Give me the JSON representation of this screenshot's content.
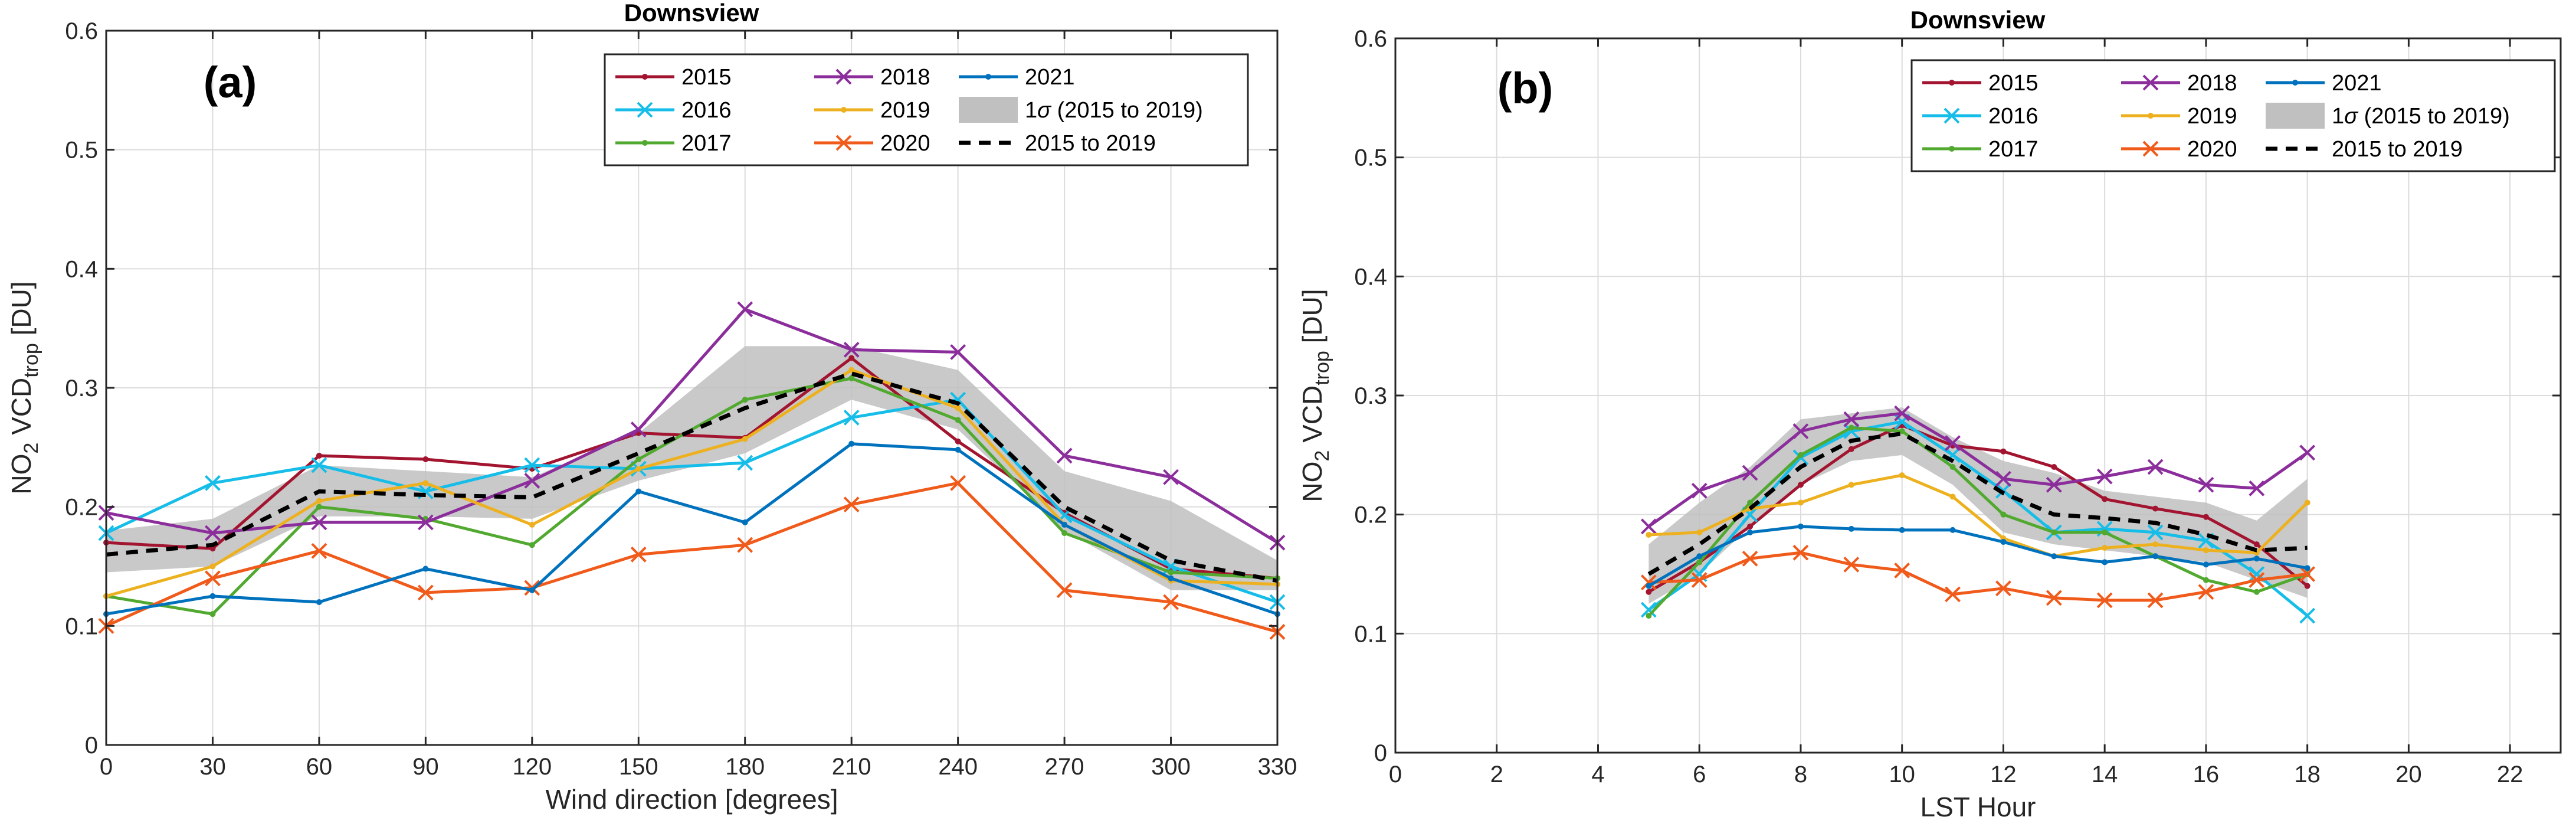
{
  "chart_data": [
    {
      "type": "line",
      "panel_label": "(a)",
      "title": "Downsview",
      "xlabel": "Wind direction [degrees]",
      "ylabel": {
        "base": "NO",
        "sub1": "2",
        "mid": " VCD",
        "sub2": "trop",
        "unit": " [DU]"
      },
      "xlim": [
        0,
        330
      ],
      "ylim": [
        0,
        0.6
      ],
      "xticks": [
        0,
        30,
        60,
        90,
        120,
        150,
        180,
        210,
        240,
        270,
        300,
        330
      ],
      "xtick_labels": [
        "0",
        "30",
        "60",
        "90",
        "120",
        "150",
        "180",
        "210",
        "240",
        "270",
        "300",
        "330"
      ],
      "yticks": [
        0,
        0.1,
        0.2,
        0.3,
        0.4,
        0.5,
        0.6
      ],
      "ytick_labels": [
        "0",
        "0.1",
        "0.2",
        "0.3",
        "0.4",
        "0.5",
        "0.6"
      ],
      "grid": true,
      "legend_position": "top-right",
      "x": [
        0,
        30,
        60,
        90,
        120,
        150,
        180,
        210,
        240,
        270,
        300,
        330
      ],
      "band": {
        "name": "1σ (2015 to 2019)",
        "sigma_symbol": "σ",
        "label_rest": " (2015 to 2019)",
        "color": "#c0c0c0",
        "lower": [
          0.145,
          0.15,
          0.192,
          0.192,
          0.19,
          0.222,
          0.245,
          0.29,
          0.265,
          0.18,
          0.13,
          0.13
        ],
        "upper": [
          0.18,
          0.19,
          0.235,
          0.23,
          0.225,
          0.262,
          0.335,
          0.335,
          0.315,
          0.23,
          0.205,
          0.155
        ]
      },
      "series": [
        {
          "name": "2015",
          "color": "#a2142f",
          "marker": "dot",
          "dashed": false,
          "values": [
            0.17,
            0.165,
            0.243,
            0.24,
            0.232,
            0.262,
            0.258,
            0.325,
            0.255,
            0.195,
            0.148,
            0.14
          ]
        },
        {
          "name": "2016",
          "color": "#16bde8",
          "marker": "x",
          "dashed": false,
          "values": [
            0.178,
            0.22,
            0.235,
            0.213,
            0.235,
            0.232,
            0.237,
            0.275,
            0.29,
            0.193,
            0.15,
            0.12
          ]
        },
        {
          "name": "2017",
          "color": "#52a930",
          "marker": "dot",
          "dashed": false,
          "values": [
            0.125,
            0.11,
            0.2,
            0.19,
            0.168,
            0.24,
            0.29,
            0.308,
            0.273,
            0.178,
            0.145,
            0.14
          ]
        },
        {
          "name": "2018",
          "color": "#8b2e9b",
          "marker": "x",
          "dashed": false,
          "values": [
            0.195,
            0.178,
            0.187,
            0.187,
            0.222,
            0.265,
            0.366,
            0.332,
            0.33,
            0.243,
            0.225,
            0.17
          ]
        },
        {
          "name": "2019",
          "color": "#edb120",
          "marker": "dot",
          "dashed": false,
          "values": [
            0.125,
            0.15,
            0.205,
            0.22,
            0.185,
            0.232,
            0.257,
            0.315,
            0.283,
            0.185,
            0.138,
            0.135
          ]
        },
        {
          "name": "2020",
          "color": "#f05a1a",
          "marker": "x",
          "dashed": false,
          "values": [
            0.1,
            0.14,
            0.163,
            0.128,
            0.132,
            0.16,
            0.168,
            0.202,
            0.22,
            0.13,
            0.12,
            0.095
          ]
        },
        {
          "name": "2021",
          "color": "#0072bd",
          "marker": "dot",
          "dashed": false,
          "values": [
            0.11,
            0.125,
            0.12,
            0.148,
            0.13,
            0.213,
            0.187,
            0.253,
            0.248,
            0.185,
            0.14,
            0.11
          ]
        },
        {
          "name": "2015 to 2019",
          "color": "#000000",
          "marker": "none",
          "dashed": true,
          "values": [
            0.16,
            0.168,
            0.213,
            0.21,
            0.208,
            0.245,
            0.283,
            0.312,
            0.287,
            0.2,
            0.155,
            0.138
          ]
        }
      ]
    },
    {
      "type": "line",
      "panel_label": "(b)",
      "title": "Downsview",
      "xlabel": "LST Hour",
      "ylabel": {
        "base": "NO",
        "sub1": "2",
        "mid": " VCD",
        "sub2": "trop",
        "unit": " [DU]"
      },
      "xlim": [
        0,
        23
      ],
      "ylim": [
        0,
        0.6
      ],
      "xticks": [
        0,
        2,
        4,
        6,
        8,
        10,
        12,
        14,
        16,
        18,
        20,
        22
      ],
      "xtick_labels": [
        "0",
        "2",
        "4",
        "6",
        "8",
        "10",
        "12",
        "14",
        "16",
        "18",
        "20",
        "22"
      ],
      "yticks": [
        0,
        0.1,
        0.2,
        0.3,
        0.4,
        0.5,
        0.6
      ],
      "ytick_labels": [
        "0",
        "0.1",
        "0.2",
        "0.3",
        "0.4",
        "0.5",
        "0.6"
      ],
      "grid": true,
      "legend_position": "top-right",
      "x": [
        5,
        6,
        7,
        8,
        9,
        10,
        11,
        12,
        13,
        14,
        15,
        16,
        17,
        18
      ],
      "band": {
        "name": "1σ (2015 to 2019)",
        "sigma_symbol": "σ",
        "label_rest": " (2015 to 2019)",
        "color": "#c0c0c0",
        "lower": [
          0.125,
          0.15,
          0.19,
          0.225,
          0.245,
          0.25,
          0.225,
          0.185,
          0.175,
          0.17,
          0.165,
          0.16,
          0.145,
          0.13
        ],
        "upper": [
          0.175,
          0.21,
          0.24,
          0.28,
          0.285,
          0.29,
          0.265,
          0.245,
          0.235,
          0.22,
          0.215,
          0.21,
          0.195,
          0.23
        ]
      },
      "series": [
        {
          "name": "2015",
          "color": "#a2142f",
          "marker": "dot",
          "dashed": false,
          "values": [
            0.135,
            0.16,
            0.19,
            0.225,
            0.255,
            0.275,
            0.258,
            0.253,
            0.24,
            0.213,
            0.205,
            0.198,
            0.175,
            0.14
          ]
        },
        {
          "name": "2016",
          "color": "#16bde8",
          "marker": "x",
          "dashed": false,
          "values": [
            0.12,
            0.15,
            0.2,
            0.248,
            0.27,
            0.278,
            0.25,
            0.22,
            0.185,
            0.188,
            0.185,
            0.178,
            0.15,
            0.115
          ]
        },
        {
          "name": "2017",
          "color": "#52a930",
          "marker": "dot",
          "dashed": false,
          "values": [
            0.115,
            0.16,
            0.21,
            0.25,
            0.273,
            0.27,
            0.24,
            0.2,
            0.185,
            0.185,
            0.165,
            0.145,
            0.135,
            0.15
          ]
        },
        {
          "name": "2018",
          "color": "#8b2e9b",
          "marker": "x",
          "dashed": false,
          "values": [
            0.19,
            0.22,
            0.235,
            0.27,
            0.28,
            0.285,
            0.26,
            0.23,
            0.225,
            0.232,
            0.24,
            0.225,
            0.222,
            0.252
          ]
        },
        {
          "name": "2019",
          "color": "#edb120",
          "marker": "dot",
          "dashed": false,
          "values": [
            0.183,
            0.185,
            0.205,
            0.21,
            0.225,
            0.233,
            0.215,
            0.18,
            0.165,
            0.172,
            0.175,
            0.17,
            0.168,
            0.21
          ]
        },
        {
          "name": "2020",
          "color": "#f05a1a",
          "marker": "x",
          "dashed": false,
          "values": [
            0.143,
            0.145,
            0.163,
            0.168,
            0.158,
            0.153,
            0.133,
            0.138,
            0.13,
            0.128,
            0.128,
            0.135,
            0.145,
            0.15
          ]
        },
        {
          "name": "2021",
          "color": "#0072bd",
          "marker": "dot",
          "dashed": false,
          "values": [
            0.14,
            0.165,
            0.185,
            0.19,
            0.188,
            0.187,
            0.187,
            0.177,
            0.165,
            0.16,
            0.165,
            0.158,
            0.163,
            0.155
          ]
        },
        {
          "name": "2015 to 2019",
          "color": "#000000",
          "marker": "none",
          "dashed": true,
          "values": [
            0.15,
            0.175,
            0.205,
            0.24,
            0.262,
            0.268,
            0.245,
            0.218,
            0.2,
            0.197,
            0.193,
            0.183,
            0.17,
            0.172
          ]
        }
      ]
    }
  ]
}
